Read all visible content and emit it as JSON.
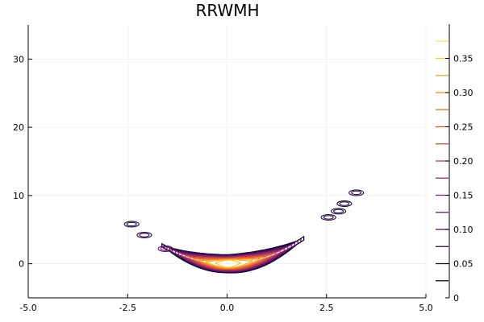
{
  "chart_data": {
    "type": "contour",
    "title": "RRWMH",
    "xlabel": "",
    "ylabel": "",
    "xlim": [
      -5,
      5
    ],
    "ylim": [
      -5,
      35
    ],
    "xticks": [
      -5,
      -2.5,
      0,
      2.5,
      5
    ],
    "xtick_labels": [
      "-5.0",
      "-2.5",
      "0.0",
      "2.5",
      "5.0"
    ],
    "yticks": [
      0,
      10,
      20,
      30
    ],
    "ytick_labels": [
      "0",
      "10",
      "20",
      "30"
    ],
    "grid": true,
    "legend": "none",
    "colormap": "inferno",
    "colorbar": {
      "range": [
        0,
        0.4
      ],
      "ticks": [
        0,
        0.05,
        0.1,
        0.15,
        0.2,
        0.25,
        0.3,
        0.35
      ],
      "tick_labels": [
        "0",
        "0.05",
        "0.10",
        "0.15",
        "0.20",
        "0.25",
        "0.30",
        "0.35"
      ],
      "levels": [
        0.025,
        0.05,
        0.075,
        0.1,
        0.125,
        0.15,
        0.175,
        0.2,
        0.225,
        0.25,
        0.275,
        0.3,
        0.325,
        0.35,
        0.375
      ]
    },
    "density_ridge": {
      "description_curve": "y = x^2",
      "x_range": [
        -1.7,
        2.0
      ],
      "peak_x": 0.0,
      "peak_value": 0.36
    },
    "islands": [
      {
        "x": -2.4,
        "y": 5.8,
        "level": 0.05
      },
      {
        "x": -2.08,
        "y": 4.2,
        "level": 0.05
      },
      {
        "x": -1.55,
        "y": 2.2,
        "level": 0.1
      },
      {
        "x": 2.55,
        "y": 6.8,
        "level": 0.05
      },
      {
        "x": 2.8,
        "y": 7.7,
        "level": 0.05
      },
      {
        "x": 2.95,
        "y": 8.8,
        "level": 0.025
      },
      {
        "x": 3.25,
        "y": 10.4,
        "level": 0.05
      }
    ]
  }
}
